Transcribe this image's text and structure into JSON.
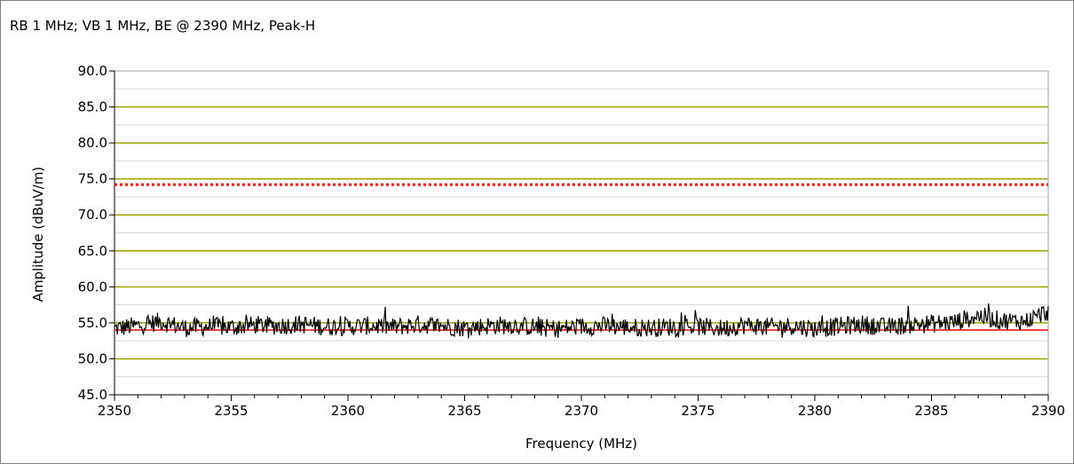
{
  "chart_data": {
    "type": "line",
    "title": "RB 1 MHz; VB 1 MHz, BE @ 2390 MHz, Peak-H",
    "xlabel": "Frequency (MHz)",
    "ylabel": "Amplitude (dBuV/m)",
    "xlim": [
      2350,
      2390
    ],
    "ylim": [
      45,
      90
    ],
    "x_ticks": [
      "2350",
      "2355",
      "2360",
      "2365",
      "2370",
      "2375",
      "2380",
      "2385",
      "2390"
    ],
    "y_ticks": [
      "45.0",
      "50.0",
      "55.0",
      "60.0",
      "65.0",
      "70.0",
      "75.0",
      "80.0",
      "85.0",
      "90.0"
    ],
    "limit_lines": [
      {
        "value": 74.2,
        "color": "#ff0000",
        "style": "dotted"
      },
      {
        "value": 54.0,
        "color": "#ff0000",
        "style": "solid"
      }
    ],
    "series": [
      {
        "color": "#000000",
        "x": [
          2350,
          2351,
          2352,
          2353,
          2354,
          2355,
          2356,
          2357,
          2358,
          2359,
          2360,
          2361,
          2362,
          2363,
          2364,
          2365,
          2366,
          2367,
          2368,
          2369,
          2370,
          2371,
          2372,
          2373,
          2374,
          2375,
          2376,
          2377,
          2378,
          2379,
          2380,
          2381,
          2382,
          2383,
          2384,
          2385,
          2386,
          2387,
          2388,
          2389,
          2390
        ],
        "y": [
          54.2,
          54.6,
          55.2,
          54.3,
          54.5,
          54.4,
          54.7,
          54.6,
          54.8,
          54.5,
          54.5,
          54.6,
          54.4,
          54.8,
          54.6,
          54.3,
          54.6,
          54.7,
          54.4,
          54.2,
          54.5,
          54.6,
          54.4,
          54.3,
          54.5,
          54.5,
          54.2,
          54.7,
          54.4,
          54.6,
          54.2,
          54.5,
          54.8,
          54.4,
          54.7,
          54.9,
          55.1,
          56.0,
          55.3,
          55.2,
          56.6
        ]
      }
    ],
    "grid_colors": {
      "major": "#a0a000",
      "minor": "#d8d8d8"
    }
  }
}
